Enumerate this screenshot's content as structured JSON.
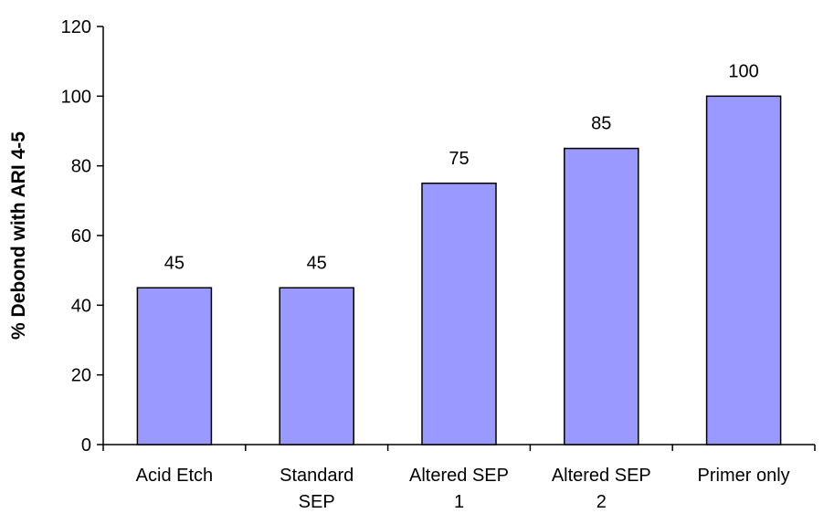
{
  "chart_data": {
    "type": "bar",
    "title": "",
    "xlabel": "",
    "ylabel": "% Debond with ARI 4-5",
    "ylim": [
      0,
      120
    ],
    "yticks": [
      0,
      20,
      40,
      60,
      80,
      100,
      120
    ],
    "grid": false,
    "legend": "none",
    "bar_color": "#9999ff",
    "bar_edge_color": "#000000",
    "categories": [
      [
        "Acid Etch"
      ],
      [
        "Standard",
        "SEP"
      ],
      [
        "Altered SEP",
        "1"
      ],
      [
        "Altered SEP",
        "2"
      ],
      [
        "Primer only"
      ]
    ],
    "values": [
      45,
      45,
      75,
      85,
      100
    ],
    "data_labels": [
      "45",
      "45",
      "75",
      "85",
      "100"
    ]
  }
}
